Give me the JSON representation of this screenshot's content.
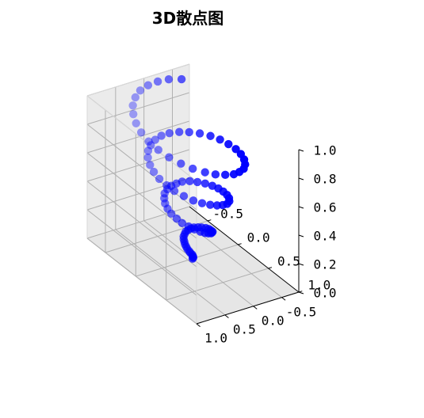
{
  "chart_data": {
    "type": "scatter",
    "projection": "3d",
    "title": "3D散点图",
    "marker_color": "#0000ff",
    "pane_color": "#f2f2f2",
    "grid_color": "#b0b0b0",
    "grid": true,
    "xlabel": "",
    "ylabel": "",
    "zlabel": "",
    "x_ticks": [
      "-0.5",
      "0.0",
      "0.5",
      "1.0"
    ],
    "y_ticks": [
      "-0.5",
      "0.0",
      "0.5",
      "1.0"
    ],
    "z_ticks": [
      "0.0",
      "0.2",
      "0.4",
      "0.6",
      "0.8",
      "1.0"
    ],
    "series": [
      {
        "points": [
          {
            "x": 0.0,
            "y": 0.0,
            "z": 0.0
          },
          {
            "x": 0.01,
            "y": 0.0,
            "z": 0.01
          },
          {
            "x": 0.02,
            "y": 0.01,
            "z": 0.02
          },
          {
            "x": 0.02,
            "y": 0.02,
            "z": 0.03
          },
          {
            "x": 0.02,
            "y": 0.03,
            "z": 0.04
          },
          {
            "x": 0.01,
            "y": 0.05,
            "z": 0.05
          },
          {
            "x": 0.0,
            "y": 0.06,
            "z": 0.06
          },
          {
            "x": -0.02,
            "y": 0.07,
            "z": 0.07
          },
          {
            "x": -0.04,
            "y": 0.07,
            "z": 0.08
          },
          {
            "x": -0.06,
            "y": 0.07,
            "z": 0.09
          },
          {
            "x": -0.08,
            "y": 0.06,
            "z": 0.1
          },
          {
            "x": -0.1,
            "y": 0.05,
            "z": 0.11
          },
          {
            "x": -0.12,
            "y": 0.03,
            "z": 0.12
          },
          {
            "x": -0.13,
            "y": 0.0,
            "z": 0.13
          },
          {
            "x": -0.14,
            "y": -0.03,
            "z": 0.14
          },
          {
            "x": -0.13,
            "y": -0.06,
            "z": 0.15
          },
          {
            "x": -0.12,
            "y": -0.1,
            "z": 0.16
          },
          {
            "x": -0.1,
            "y": -0.13,
            "z": 0.17
          },
          {
            "x": -0.06,
            "y": -0.16,
            "z": 0.18
          },
          {
            "x": -0.02,
            "y": -0.18,
            "z": 0.19
          },
          {
            "x": 0.03,
            "y": -0.2,
            "z": 0.2
          },
          {
            "x": 0.08,
            "y": -0.2,
            "z": 0.21
          },
          {
            "x": 0.13,
            "y": -0.18,
            "z": 0.22
          },
          {
            "x": 0.18,
            "y": -0.16,
            "z": 0.23
          },
          {
            "x": 0.21,
            "y": -0.12,
            "z": 0.24
          },
          {
            "x": 0.24,
            "y": -0.07,
            "z": 0.25
          },
          {
            "x": 0.25,
            "y": -0.01,
            "z": 0.26
          },
          {
            "x": 0.25,
            "y": 0.05,
            "z": 0.27
          },
          {
            "x": 0.23,
            "y": 0.11,
            "z": 0.28
          },
          {
            "x": 0.19,
            "y": 0.17,
            "z": 0.29
          },
          {
            "x": 0.14,
            "y": 0.22,
            "z": 0.3
          },
          {
            "x": 0.08,
            "y": 0.27,
            "z": 0.31
          },
          {
            "x": 0.01,
            "y": 0.29,
            "z": 0.32
          },
          {
            "x": -0.07,
            "y": 0.3,
            "z": 0.33
          },
          {
            "x": -0.14,
            "y": 0.29,
            "z": 0.34
          },
          {
            "x": -0.21,
            "y": 0.26,
            "z": 0.35
          },
          {
            "x": -0.27,
            "y": 0.21,
            "z": 0.36
          },
          {
            "x": -0.32,
            "y": 0.15,
            "z": 0.37
          },
          {
            "x": -0.35,
            "y": 0.07,
            "z": 0.38
          },
          {
            "x": -0.36,
            "y": -0.01,
            "z": 0.39
          },
          {
            "x": -0.35,
            "y": -0.09,
            "z": 0.4
          },
          {
            "x": -0.33,
            "y": -0.17,
            "z": 0.41
          },
          {
            "x": -0.28,
            "y": -0.25,
            "z": 0.42
          },
          {
            "x": -0.21,
            "y": -0.31,
            "z": 0.43
          },
          {
            "x": -0.13,
            "y": -0.36,
            "z": 0.44
          },
          {
            "x": -0.04,
            "y": -0.39,
            "z": 0.45
          },
          {
            "x": 0.05,
            "y": -0.4,
            "z": 0.46
          },
          {
            "x": 0.14,
            "y": -0.39,
            "z": 0.47
          },
          {
            "x": 0.23,
            "y": -0.36,
            "z": 0.48
          },
          {
            "x": 0.31,
            "y": -0.31,
            "z": 0.49
          },
          {
            "x": 0.38,
            "y": -0.24,
            "z": 0.5
          },
          {
            "x": 0.43,
            "y": -0.15,
            "z": 0.51
          },
          {
            "x": 0.45,
            "y": -0.05,
            "z": 0.52
          },
          {
            "x": 0.45,
            "y": 0.05,
            "z": 0.53
          },
          {
            "x": 0.43,
            "y": 0.15,
            "z": 0.54
          },
          {
            "x": 0.39,
            "y": 0.25,
            "z": 0.55
          },
          {
            "x": 0.33,
            "y": 0.34,
            "z": 0.56
          },
          {
            "x": 0.24,
            "y": 0.41,
            "z": 0.57
          },
          {
            "x": 0.14,
            "y": 0.47,
            "z": 0.58
          },
          {
            "x": 0.04,
            "y": 0.5,
            "z": 0.59
          },
          {
            "x": -0.07,
            "y": 0.51,
            "z": 0.6
          },
          {
            "x": -0.18,
            "y": 0.49,
            "z": 0.61
          },
          {
            "x": -0.28,
            "y": 0.45,
            "z": 0.62
          },
          {
            "x": -0.38,
            "y": 0.38,
            "z": 0.63
          },
          {
            "x": -0.46,
            "y": 0.29,
            "z": 0.64
          },
          {
            "x": -0.51,
            "y": 0.19,
            "z": 0.65
          },
          {
            "x": -0.55,
            "y": 0.07,
            "z": 0.66
          },
          {
            "x": -0.56,
            "y": -0.05,
            "z": 0.67
          },
          {
            "x": -0.54,
            "y": -0.17,
            "z": 0.68
          },
          {
            "x": -0.49,
            "y": -0.29,
            "z": 0.69
          },
          {
            "x": -0.42,
            "y": -0.39,
            "z": 0.7
          },
          {
            "x": -0.33,
            "y": -0.48,
            "z": 0.71
          },
          {
            "x": -0.22,
            "y": -0.55,
            "z": 0.72
          },
          {
            "x": -0.1,
            "y": -0.59,
            "z": 0.73
          },
          {
            "x": 0.03,
            "y": -0.6,
            "z": 0.74
          },
          {
            "x": 0.16,
            "y": -0.59,
            "z": 0.75
          },
          {
            "x": 0.28,
            "y": -0.55,
            "z": 0.76
          },
          {
            "x": 0.4,
            "y": -0.48,
            "z": 0.77
          },
          {
            "x": 0.5,
            "y": -0.39,
            "z": 0.78
          },
          {
            "x": 0.58,
            "y": -0.28,
            "z": 0.79
          },
          {
            "x": 0.63,
            "y": -0.15,
            "z": 0.8
          },
          {
            "x": 0.66,
            "y": -0.02,
            "z": 0.81
          },
          {
            "x": 0.65,
            "y": 0.12,
            "z": 0.82
          },
          {
            "x": 0.62,
            "y": 0.26,
            "z": 0.83
          },
          {
            "x": 0.56,
            "y": 0.38,
            "z": 0.84
          },
          {
            "x": 0.47,
            "y": 0.5,
            "z": 0.85
          },
          {
            "x": 0.36,
            "y": 0.59,
            "z": 0.86
          },
          {
            "x": 0.23,
            "y": 0.66,
            "z": 0.87
          },
          {
            "x": 0.09,
            "y": 0.7,
            "z": 0.88
          },
          {
            "x": -0.06,
            "y": 0.71,
            "z": 0.89
          },
          {
            "x": -0.21,
            "y": 0.68,
            "z": 0.9
          },
          {
            "x": -0.35,
            "y": 0.62,
            "z": 0.91
          },
          {
            "x": -0.48,
            "y": 0.53,
            "z": 0.92
          },
          {
            "x": -0.59,
            "y": 0.42,
            "z": 0.93
          },
          {
            "x": -0.68,
            "y": 0.28,
            "z": 0.94
          },
          {
            "x": -0.74,
            "y": 0.13,
            "z": 0.95
          },
          {
            "x": -0.76,
            "y": -0.03,
            "z": 0.96
          },
          {
            "x": -0.75,
            "y": -0.19,
            "z": 0.97
          },
          {
            "x": -0.71,
            "y": -0.34,
            "z": 0.98
          },
          {
            "x": -0.63,
            "y": -0.48,
            "z": 0.99
          }
        ]
      }
    ]
  }
}
